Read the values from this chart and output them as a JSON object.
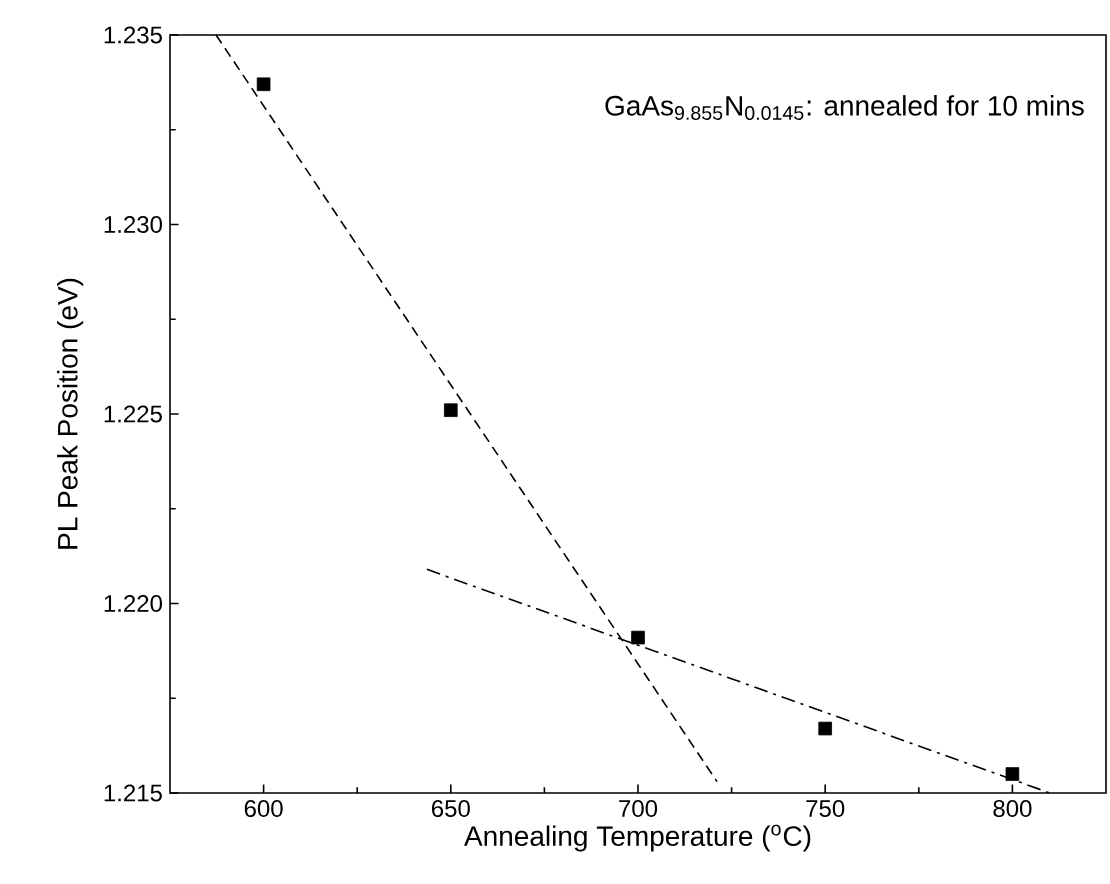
{
  "chart_data": {
    "type": "scatter",
    "xlabel": "Annealing Temperature ($^{o}$C)",
    "ylabel": "PL Peak Position (eV)",
    "annotations": [
      "GaAs$_{9.855}$N$_{0.0145}$: annealed for 10 mins"
    ],
    "xlim": [
      575,
      825
    ],
    "ylim": [
      1.215,
      1.235
    ],
    "xticks": [
      600,
      650,
      700,
      750,
      800
    ],
    "yticks": [
      {
        "value": 1.215,
        "label": "1.215"
      },
      {
        "value": 1.22,
        "label": "1.220"
      },
      {
        "value": 1.225,
        "label": "1.225"
      },
      {
        "value": 1.23,
        "label": "1.230"
      },
      {
        "value": 1.235,
        "label": "1.235"
      }
    ],
    "series": [
      {
        "color": "#000000",
        "marker": "square",
        "x": [
          600,
          650,
          700,
          750,
          800
        ],
        "values": [
          1.2337,
          1.2251,
          1.2191,
          1.2167,
          1.2155
        ]
      },
      {
        "type": "line",
        "color": "#000000",
        "line_style": "dashed",
        "marker": "none",
        "x": [
          587.3,
          721.1
        ],
        "values": [
          1.235,
          1.2153
        ]
      },
      {
        "type": "line",
        "color": "#000000",
        "line_style": "dashdot",
        "marker": "none",
        "x": [
          643.6,
          810
        ],
        "values": [
          1.2209,
          1.215
        ]
      }
    ]
  }
}
